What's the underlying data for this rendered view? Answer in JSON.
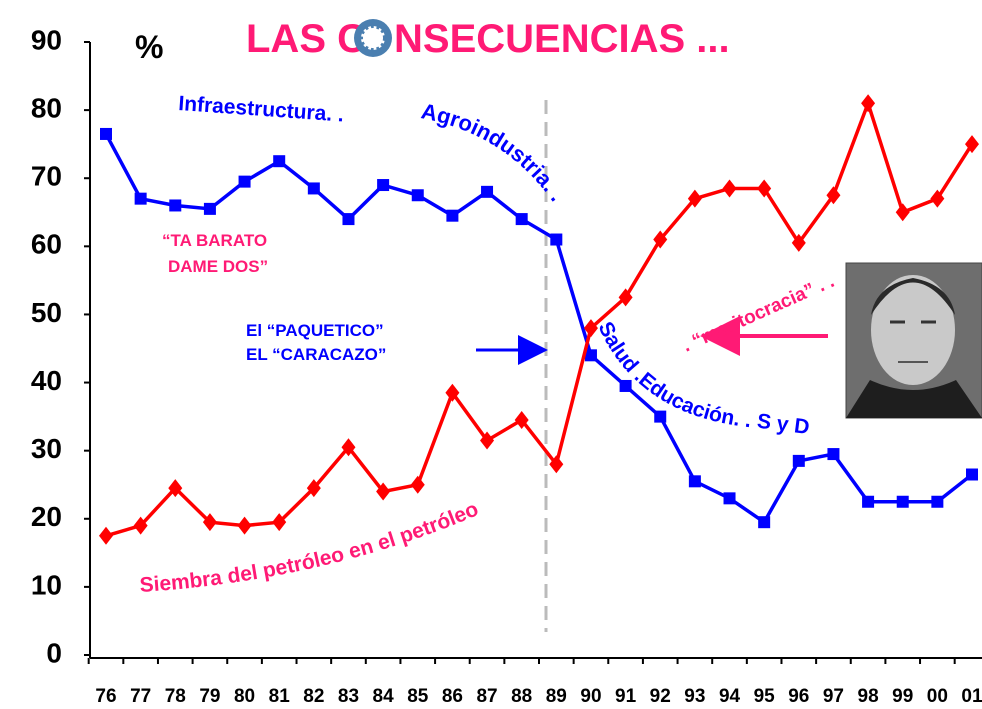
{
  "chart_data": {
    "type": "line",
    "title_parts": [
      "LAS C",
      "NSECUENCIAS ..."
    ],
    "y_label": "%",
    "categories": [
      "76",
      "77",
      "78",
      "79",
      "80",
      "81",
      "82",
      "83",
      "84",
      "85",
      "86",
      "87",
      "88",
      "89",
      "90",
      "91",
      "92",
      "93",
      "94",
      "95",
      "96",
      "97",
      "98",
      "99",
      "00",
      "01"
    ],
    "series": [
      {
        "color": "#0000ff",
        "marker": "square",
        "values": [
          76.5,
          67,
          66,
          65.5,
          69.5,
          72.5,
          68.5,
          64,
          69,
          67.5,
          64.5,
          68,
          64,
          61,
          44,
          39.5,
          35,
          25.5,
          23,
          19.5,
          28.5,
          29.5,
          22.5,
          22.5,
          22.5,
          26.5
        ]
      },
      {
        "color": "#ff0000",
        "marker": "diamond",
        "values": [
          17.5,
          19,
          24.5,
          19.5,
          19,
          19.5,
          24.5,
          30.5,
          24,
          25,
          38.5,
          31.5,
          34.5,
          28,
          48,
          52.5,
          61,
          67,
          68.5,
          68.5,
          60.5,
          67.5,
          81,
          65,
          67,
          75
        ]
      }
    ],
    "ylim": [
      0,
      90
    ],
    "yticks": [
      0,
      10,
      20,
      30,
      40,
      50,
      60,
      70,
      80,
      90
    ],
    "annotations": [
      {
        "text": "Infraestructura. .",
        "color": "#0000ff"
      },
      {
        "text": "Agroindustria. .",
        "color": "#0000ff"
      },
      {
        "text": "Salud .Educación. . S y D",
        "color": "#0000ff"
      },
      {
        "text": "“TA BARATO",
        "color": "#ff1a75"
      },
      {
        "text": "DAME DOS”",
        "color": "#ff1a75"
      },
      {
        "text": "El “PAQUETICO”",
        "color": "#0000ff"
      },
      {
        "text": "EL “CARACAZO”",
        "color": "#0000ff"
      },
      {
        "text": "Siembra  del  petróleo  en  el  petróleo",
        "color": "#ff1a75"
      },
      {
        "text": ". “meritocracia” . .",
        "color": "#ff1a75"
      }
    ]
  }
}
